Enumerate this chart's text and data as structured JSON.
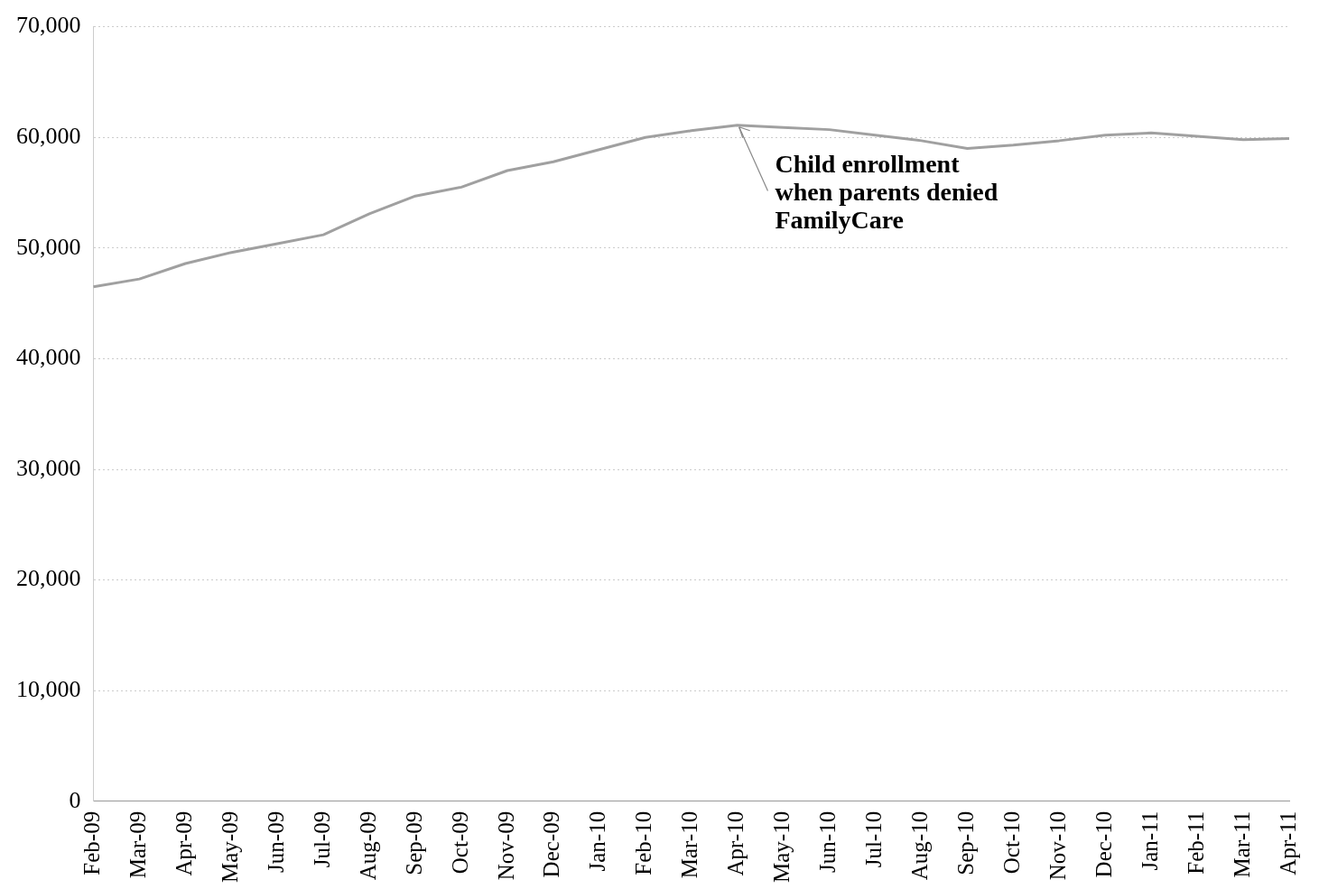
{
  "chart_data": {
    "type": "line",
    "categories": [
      "Feb-09",
      "Mar-09",
      "Apr-09",
      "May-09",
      "Jun-09",
      "Jul-09",
      "Aug-09",
      "Sep-09",
      "Oct-09",
      "Nov-09",
      "Dec-09",
      "Jan-10",
      "Feb-10",
      "Mar-10",
      "Apr-10",
      "May-10",
      "Jun-10",
      "Jul-10",
      "Aug-10",
      "Sep-10",
      "Oct-10",
      "Nov-10",
      "Dec-10",
      "Jan-11",
      "Feb-11",
      "Mar-11",
      "Apr-11"
    ],
    "series": [
      {
        "color": "#a0a0a0",
        "values": [
          46500,
          47200,
          48600,
          49600,
          50400,
          51200,
          53100,
          54700,
          55500,
          57000,
          57800,
          58900,
          60000,
          60600,
          61100,
          60900,
          60700,
          60200,
          59700,
          59000,
          59300,
          59700,
          60200,
          60400,
          60100,
          59800,
          59900
        ]
      }
    ],
    "ylim": [
      0,
      70000
    ],
    "yticks": [
      {
        "value": 0,
        "label": "0"
      },
      {
        "value": 10000,
        "label": "10,000"
      },
      {
        "value": 20000,
        "label": "20,000"
      },
      {
        "value": 30000,
        "label": "30,000"
      },
      {
        "value": 40000,
        "label": "40,000"
      },
      {
        "value": 50000,
        "label": "50,000"
      },
      {
        "value": 60000,
        "label": "60,000"
      },
      {
        "value": 70000,
        "label": "70,000"
      }
    ],
    "grid": "y",
    "legend": false,
    "marker": "none",
    "line_style": "solid",
    "annotations": [
      {
        "text": "Child enrollment\nwhen parents denied\nFamilyCare",
        "x": "Apr-10",
        "y": 61100
      }
    ]
  }
}
